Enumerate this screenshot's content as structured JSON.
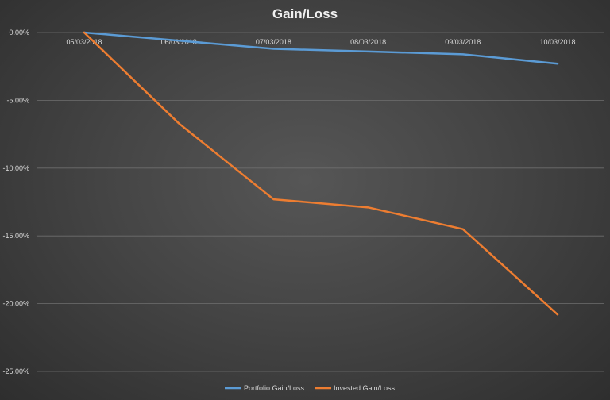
{
  "chart_data": {
    "type": "line",
    "title": "Gain/Loss",
    "categories": [
      "05/03/2018",
      "06/03/2018",
      "07/03/2018",
      "08/03/2018",
      "09/03/2018",
      "10/03/2018"
    ],
    "ylim": [
      -25,
      0
    ],
    "yticks": [
      "0.00%",
      "-5.00%",
      "-10.00%",
      "-15.00%",
      "-20.00%",
      "-25.00%"
    ],
    "grid": true,
    "legend_position": "bottom",
    "series": [
      {
        "name": "Portfolio Gain/Loss",
        "color": "#5b9bd5",
        "values": [
          0,
          -0.6,
          -1.2,
          -1.4,
          -1.6,
          -2.3
        ]
      },
      {
        "name": "Invested Gain/Loss",
        "color": "#ed7d31",
        "values": [
          0,
          -6.7,
          -12.3,
          -12.9,
          -14.5,
          -20.8
        ]
      }
    ]
  }
}
